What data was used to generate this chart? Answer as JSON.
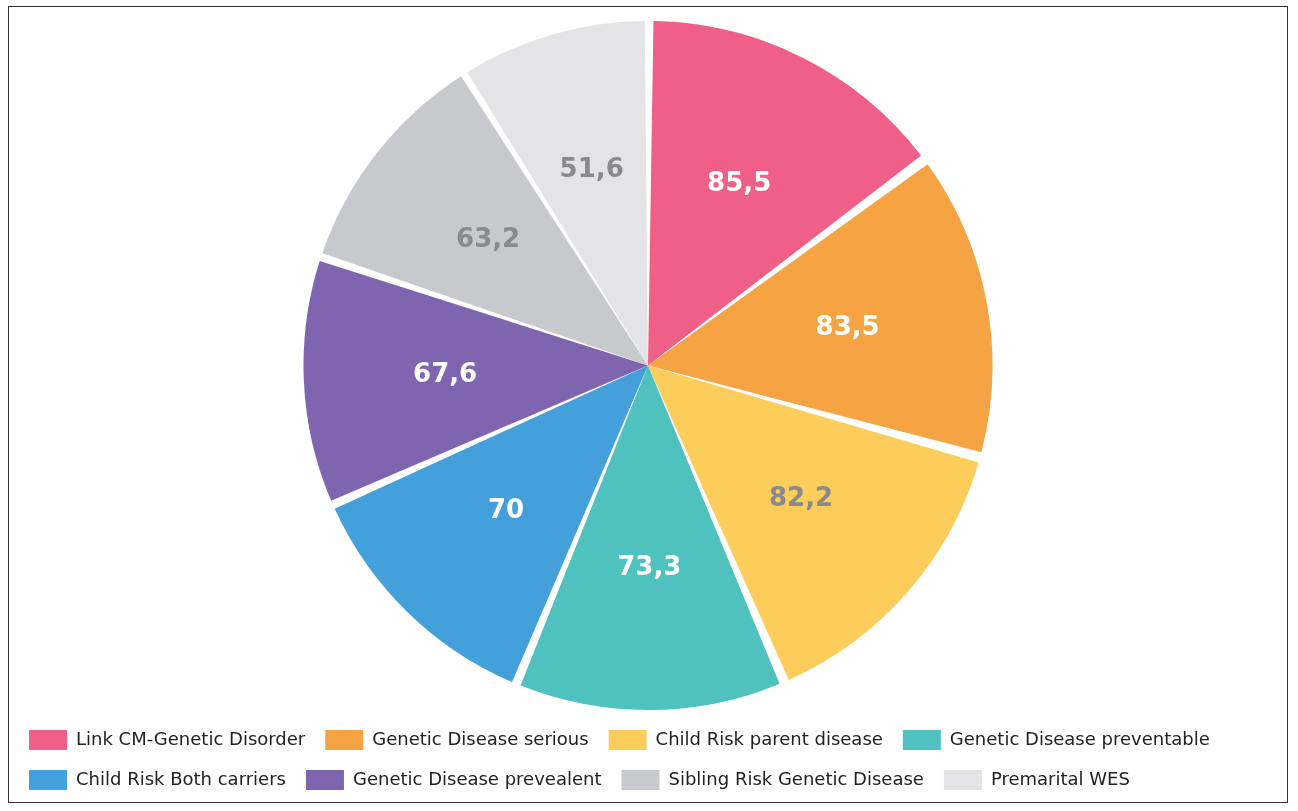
{
  "chart_data": {
    "type": "pie",
    "categories": [
      "Link CM-Genetic Disorder",
      "Genetic Disease serious",
      "Child Risk parent disease",
      "Genetic Disease preventable",
      "Child Risk Both carriers",
      "Genetic Disease prevealent",
      "Sibling Risk Genetic Disease",
      "Premarital WES"
    ],
    "values": [
      85.5,
      83.5,
      82.2,
      73.3,
      70,
      67.6,
      63.2,
      51.6
    ],
    "value_labels": [
      "85,5",
      "83,5",
      "82,2",
      "73,3",
      "70",
      "67,6",
      "63,2",
      "51,6"
    ],
    "colors": [
      "#ef5f87",
      "#f6a343",
      "#fccd5a",
      "#4fc1be",
      "#43a0db",
      "#7f65b0",
      "#c8c9cd",
      "#e4e4e6"
    ],
    "legend": "bottom"
  }
}
